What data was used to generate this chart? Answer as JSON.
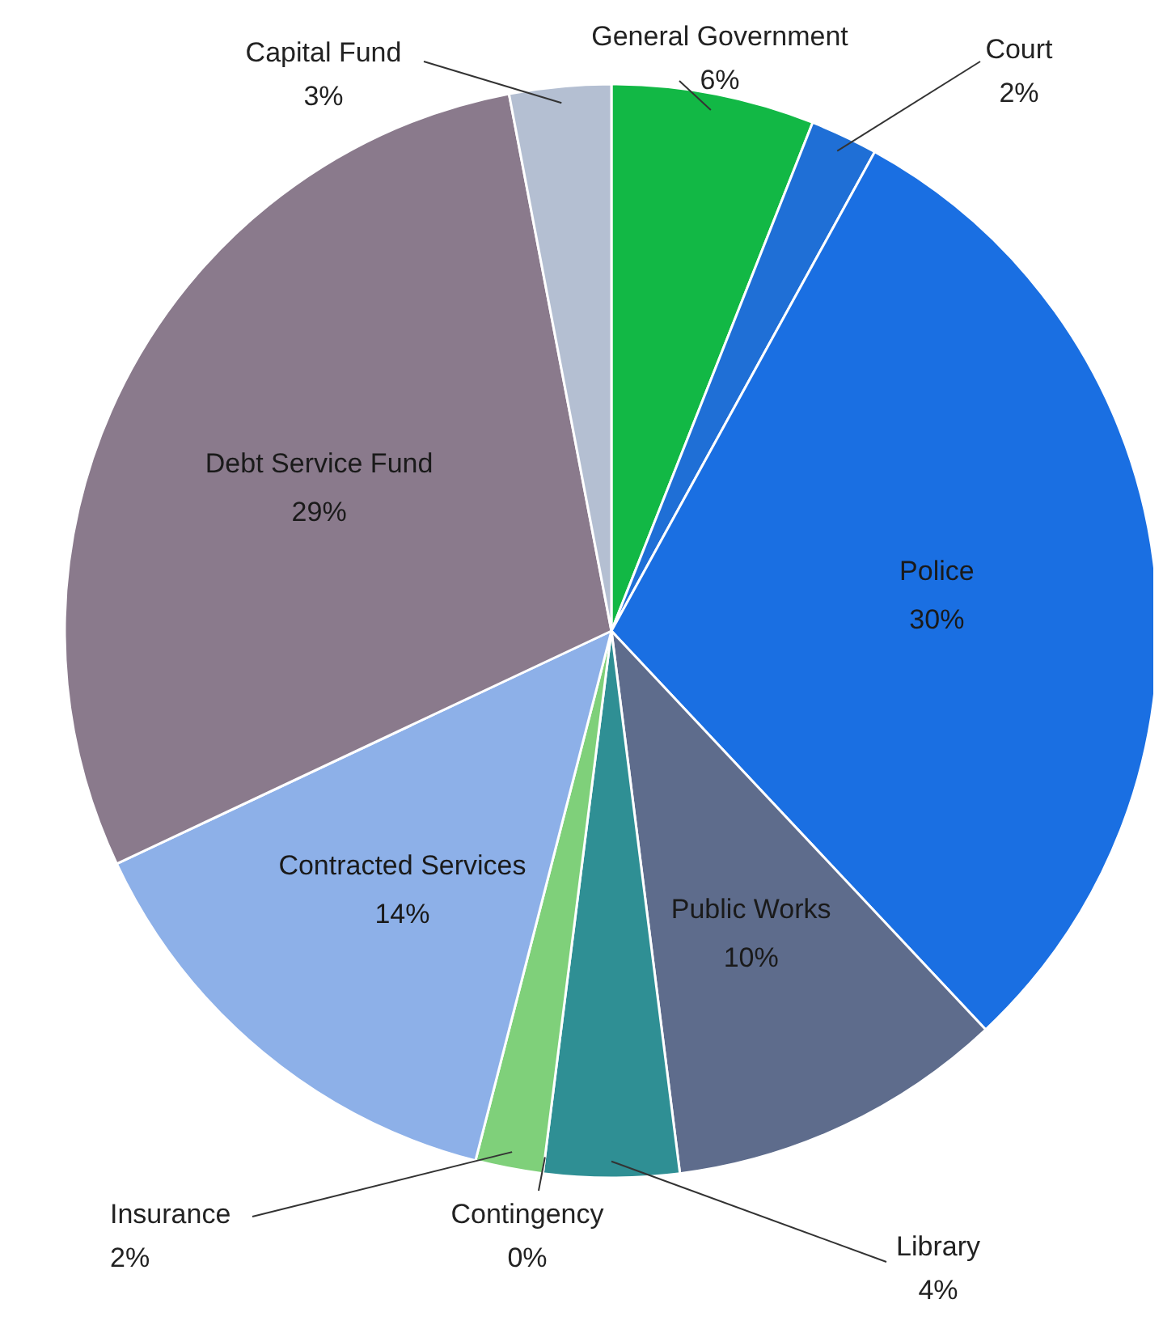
{
  "chart_data": {
    "type": "pie",
    "categories": [
      "General Government",
      "Court",
      "Police",
      "Public Works",
      "Library",
      "Contingency",
      "Insurance",
      "Contracted Services",
      "Debt Service Fund",
      "Capital Fund"
    ],
    "values": [
      6,
      2,
      30,
      10,
      4,
      0,
      2,
      14,
      29,
      3
    ],
    "colors": [
      "#12b845",
      "#1f6fd6",
      "#1a6fe2",
      "#5e6c8c",
      "#2f8f94",
      null,
      "#7fd07a",
      "#8db0e8",
      "#8a7a8c",
      "#b4bfd2"
    ],
    "value_labels": [
      "6%",
      "2%",
      "30%",
      "10%",
      "4%",
      "0%",
      "2%",
      "14%",
      "29%",
      "3%"
    ]
  }
}
